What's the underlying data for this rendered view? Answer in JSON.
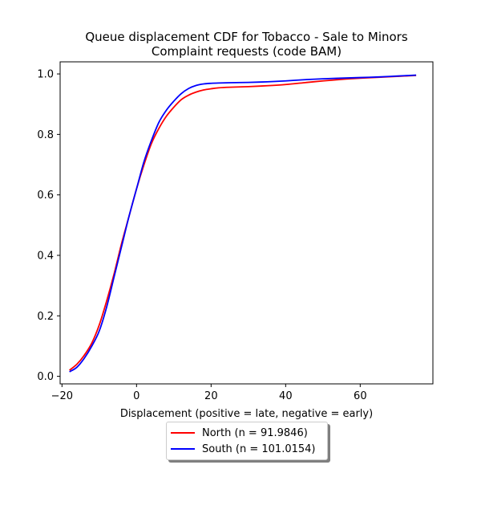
{
  "chart_data": {
    "type": "line",
    "title_lines": [
      "Queue displacement CDF for Tobacco - Sale to Minors",
      "Complaint  requests (code BAM)"
    ],
    "xlabel": "Displacement (positive = late, negative = early)",
    "ylabel": "",
    "xlim": [
      -20.5,
      79.5
    ],
    "ylim": [
      -0.025,
      1.04
    ],
    "xticks": [
      -20,
      0,
      20,
      40,
      60
    ],
    "xtick_labels": [
      "−20",
      "0",
      "20",
      "40",
      "60"
    ],
    "yticks": [
      0.0,
      0.2,
      0.4,
      0.6,
      0.8,
      1.0
    ],
    "ytick_labels": [
      "0.0",
      "0.2",
      "0.4",
      "0.6",
      "0.8",
      "1.0"
    ],
    "grid": false,
    "legend_placement": "below",
    "series": [
      {
        "name": "North (n = 91.9846)",
        "color": "#ff0000",
        "x": [
          -18,
          -16,
          -14,
          -12,
          -10,
          -8,
          -6,
          -4,
          -2,
          0,
          2,
          4,
          6,
          8,
          10,
          12,
          14,
          16,
          18,
          20,
          22,
          25,
          30,
          35,
          40,
          45,
          50,
          55,
          60,
          65,
          70,
          75
        ],
        "y": [
          0.02,
          0.04,
          0.07,
          0.11,
          0.17,
          0.25,
          0.34,
          0.44,
          0.53,
          0.62,
          0.7,
          0.77,
          0.82,
          0.86,
          0.89,
          0.915,
          0.93,
          0.94,
          0.947,
          0.951,
          0.954,
          0.956,
          0.958,
          0.961,
          0.965,
          0.971,
          0.977,
          0.982,
          0.986,
          0.989,
          0.992,
          0.995
        ]
      },
      {
        "name": "South (n = 101.0154)",
        "color": "#0000ff",
        "x": [
          -18,
          -16,
          -14,
          -12,
          -10,
          -8,
          -6,
          -4,
          -2,
          0,
          2,
          4,
          6,
          8,
          10,
          12,
          14,
          16,
          18,
          20,
          22,
          25,
          30,
          35,
          40,
          45,
          50,
          55,
          60,
          65,
          70,
          75
        ],
        "y": [
          0.015,
          0.03,
          0.06,
          0.1,
          0.15,
          0.23,
          0.33,
          0.43,
          0.53,
          0.62,
          0.71,
          0.78,
          0.84,
          0.88,
          0.91,
          0.935,
          0.952,
          0.962,
          0.967,
          0.969,
          0.97,
          0.971,
          0.972,
          0.974,
          0.977,
          0.981,
          0.984,
          0.986,
          0.988,
          0.99,
          0.993,
          0.996
        ]
      }
    ]
  }
}
